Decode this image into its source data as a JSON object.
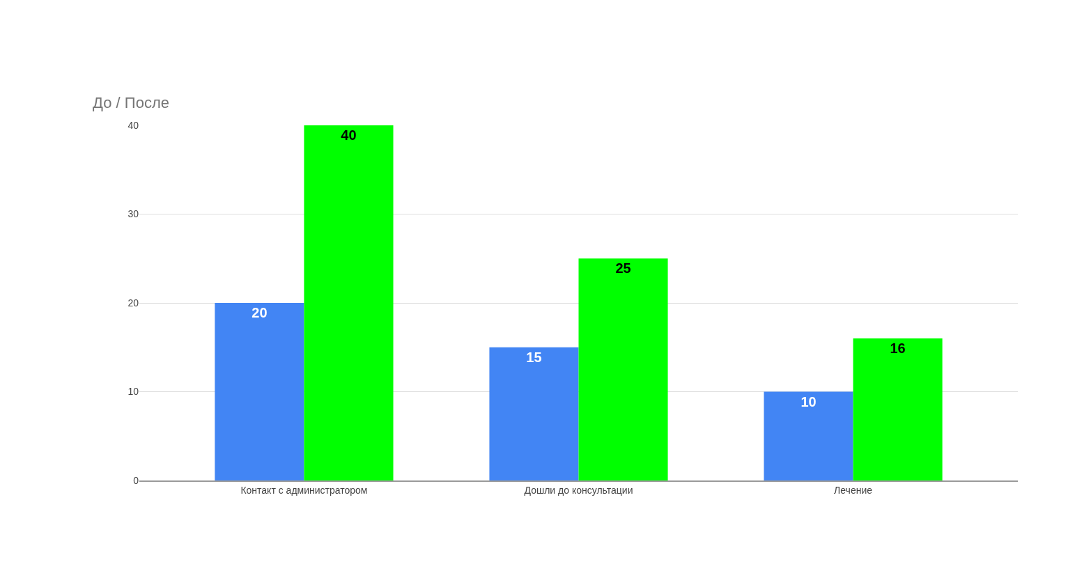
{
  "chart_data": {
    "type": "bar",
    "title": "До / После",
    "categories": [
      "Контакт с администратором",
      "Дошли до консультации",
      "Лечение"
    ],
    "series": [
      {
        "color": "#4285f4",
        "values": [
          20,
          15,
          10
        ]
      },
      {
        "color": "#00ff00",
        "values": [
          40,
          25,
          16
        ]
      }
    ],
    "ylim": [
      0,
      40
    ],
    "yticks": [
      0,
      10,
      20,
      30,
      40
    ],
    "grid": "y",
    "data_labels": true
  }
}
